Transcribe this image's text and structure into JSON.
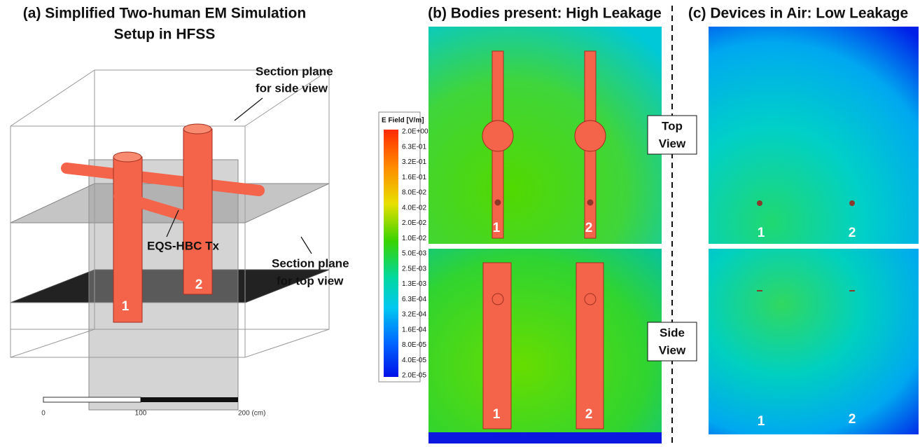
{
  "panel_a": {
    "title": [
      "(a) Simplified Two-human EM Simulation",
      "Setup in HFSS"
    ],
    "side_plane_label": [
      "Section plane",
      "for side view"
    ],
    "top_plane_label": [
      "Section plane",
      "for top view"
    ],
    "tx_label": "EQS-HBC Tx",
    "bodies": [
      "1",
      "2"
    ],
    "scale": [
      "0",
      "100",
      "200 (cm)"
    ]
  },
  "panel_b": {
    "title": "(b) Bodies present: High Leakage",
    "top_bodies": [
      "1",
      "2"
    ],
    "side_bodies": [
      "1",
      "2"
    ]
  },
  "panel_c": {
    "title": "(c) Devices in Air: Low Leakage",
    "top_bodies": [
      "1",
      "2"
    ],
    "side_bodies": [
      "1",
      "2"
    ]
  },
  "views": {
    "top": [
      "Top",
      "View"
    ],
    "side": [
      "Side",
      "View"
    ]
  },
  "colorbar": {
    "title": "E Field [V/m]",
    "ticks": [
      "2.0E+00",
      "6.3E-01",
      "3.2E-01",
      "1.6E-01",
      "8.0E-02",
      "4.0E-02",
      "2.0E-02",
      "1.0E-02",
      "5.0E-03",
      "2.5E-03",
      "1.3E-03",
      "6.3E-04",
      "3.2E-04",
      "1.6E-04",
      "8.0E-05",
      "4.0E-05",
      "2.0E-05"
    ]
  }
}
